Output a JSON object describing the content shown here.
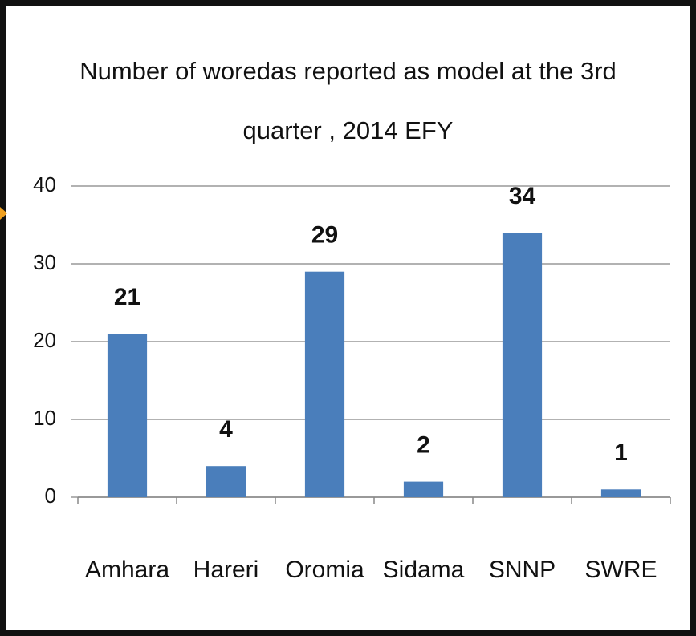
{
  "chart_data": {
    "type": "bar",
    "title": "Number of woredas reported as model at the 3rd quarter , 2014 EFY",
    "categories": [
      "Amhara",
      "Hareri",
      "Oromia",
      "Sidama",
      "SNNP",
      "SWRE"
    ],
    "values": [
      21,
      4,
      29,
      2,
      34,
      1
    ],
    "color": "#4a7ebb",
    "ylim": [
      0,
      40
    ],
    "yticks": [
      0,
      10,
      20,
      30,
      40
    ],
    "grid": true
  }
}
